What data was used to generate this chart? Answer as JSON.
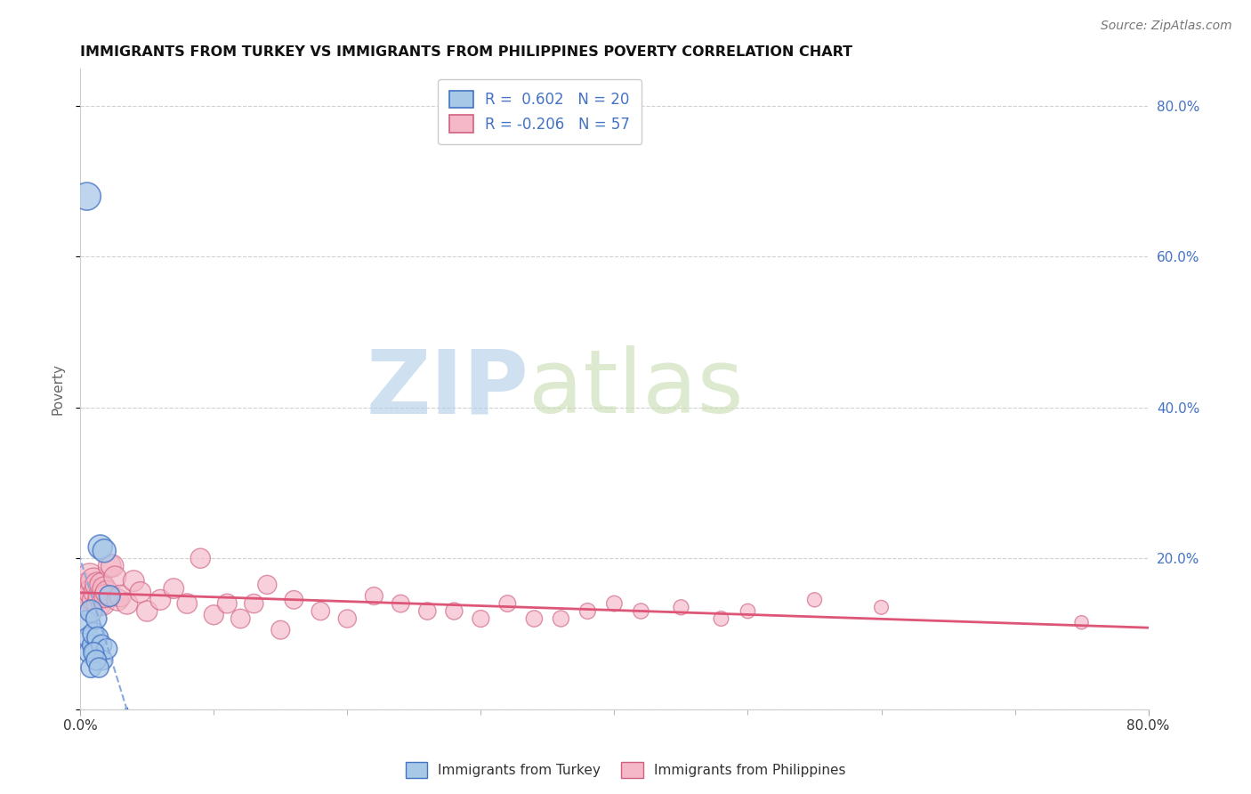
{
  "title": "IMMIGRANTS FROM TURKEY VS IMMIGRANTS FROM PHILIPPINES POVERTY CORRELATION CHART",
  "source": "Source: ZipAtlas.com",
  "ylabel": "Poverty",
  "xlim": [
    0.0,
    0.8
  ],
  "ylim": [
    0.0,
    0.85
  ],
  "x_ticks": [
    0.0,
    0.8
  ],
  "x_tick_labels": [
    "0.0%",
    "80.0%"
  ],
  "x_minor_ticks": [
    0.1,
    0.2,
    0.3,
    0.4,
    0.5,
    0.6,
    0.7
  ],
  "y_ticks": [
    0.0,
    0.2,
    0.4,
    0.6,
    0.8
  ],
  "y_right_tick_labels": [
    "",
    "20.0%",
    "40.0%",
    "60.0%",
    "80.0%"
  ],
  "turkey_color": "#a8c8e8",
  "turkey_edge_color": "#4472c4",
  "philippines_color": "#f4b8c8",
  "philippines_edge_color": "#d06080",
  "legend_line1": "R =  0.602   N = 20",
  "legend_line2": "R = -0.206   N = 57",
  "turkey_x": [
    0.004,
    0.006,
    0.007,
    0.008,
    0.009,
    0.01,
    0.011,
    0.012,
    0.013,
    0.015,
    0.016,
    0.017,
    0.018,
    0.02,
    0.022,
    0.005,
    0.008,
    0.01,
    0.012,
    0.014
  ],
  "turkey_y": [
    0.115,
    0.095,
    0.075,
    0.13,
    0.085,
    0.1,
    0.075,
    0.12,
    0.095,
    0.215,
    0.085,
    0.065,
    0.21,
    0.08,
    0.15,
    0.68,
    0.055,
    0.075,
    0.065,
    0.055
  ],
  "turkey_sizes": [
    350,
    280,
    300,
    320,
    260,
    310,
    270,
    280,
    290,
    380,
    270,
    250,
    350,
    270,
    290,
    500,
    260,
    270,
    260,
    250
  ],
  "philippines_x": [
    0.003,
    0.004,
    0.005,
    0.006,
    0.007,
    0.008,
    0.009,
    0.01,
    0.011,
    0.012,
    0.013,
    0.014,
    0.015,
    0.016,
    0.017,
    0.018,
    0.019,
    0.02,
    0.022,
    0.024,
    0.026,
    0.028,
    0.03,
    0.035,
    0.04,
    0.045,
    0.05,
    0.06,
    0.07,
    0.08,
    0.09,
    0.1,
    0.11,
    0.12,
    0.13,
    0.14,
    0.15,
    0.16,
    0.18,
    0.2,
    0.22,
    0.24,
    0.26,
    0.28,
    0.3,
    0.32,
    0.34,
    0.36,
    0.38,
    0.4,
    0.42,
    0.45,
    0.48,
    0.5,
    0.55,
    0.6,
    0.75
  ],
  "philippines_y": [
    0.155,
    0.145,
    0.16,
    0.15,
    0.175,
    0.14,
    0.155,
    0.17,
    0.145,
    0.155,
    0.165,
    0.14,
    0.15,
    0.165,
    0.14,
    0.16,
    0.15,
    0.155,
    0.19,
    0.19,
    0.175,
    0.145,
    0.15,
    0.14,
    0.17,
    0.155,
    0.13,
    0.145,
    0.16,
    0.14,
    0.2,
    0.125,
    0.14,
    0.12,
    0.14,
    0.165,
    0.105,
    0.145,
    0.13,
    0.12,
    0.15,
    0.14,
    0.13,
    0.13,
    0.12,
    0.14,
    0.12,
    0.12,
    0.13,
    0.14,
    0.13,
    0.135,
    0.12,
    0.13,
    0.145,
    0.135,
    0.115
  ],
  "philippines_sizes": [
    900,
    700,
    600,
    550,
    500,
    480,
    460,
    440,
    420,
    410,
    400,
    390,
    380,
    370,
    360,
    360,
    350,
    350,
    340,
    330,
    320,
    310,
    310,
    300,
    290,
    285,
    280,
    270,
    265,
    260,
    255,
    250,
    245,
    240,
    235,
    230,
    225,
    220,
    215,
    210,
    205,
    200,
    195,
    190,
    185,
    180,
    175,
    170,
    165,
    160,
    155,
    150,
    145,
    140,
    135,
    130,
    120
  ],
  "background_color": "#ffffff",
  "grid_color": "#cccccc",
  "watermark_zip": "ZIP",
  "watermark_atlas": "atlas",
  "watermark_color_zip": "#b0cce8",
  "watermark_color_atlas": "#c8ddb0",
  "right_tick_color": "#4472c4",
  "turkey_line_color": "#2255bb",
  "turkey_dash_color": "#88aadd",
  "philippines_line_color": "#dd5577",
  "legend_turkey_R_color": "#4472c4",
  "legend_philippines_R_color": "#e06080"
}
